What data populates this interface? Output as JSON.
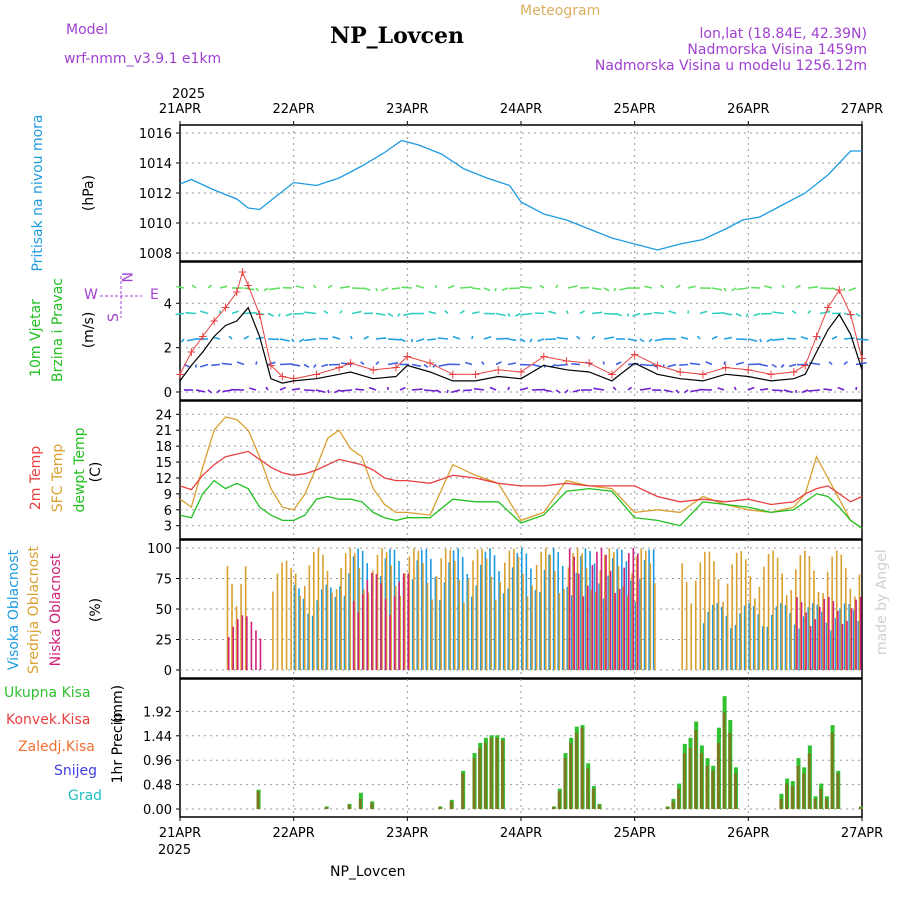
{
  "header": {
    "model_label": "Model",
    "model_name": "wrf-nmm_v3.9.1 e1km",
    "title": "NP_Lovcen",
    "subtitle": "Meteogram",
    "lonlat": "lon,lat (18.84E, 42.39N)",
    "elevation": "Nadmorska Visina 1459m",
    "model_elevation": "Nadmorska Visina u modelu 1256.12m",
    "footer": "NP_Lovcen",
    "watermark": "made by Angel"
  },
  "colors": {
    "pressure": "#1e9be0",
    "temp2m": "#e84040",
    "sfc_temp": "#d9a030",
    "dewpt": "#20c020",
    "cloud_high": "#1e9be0",
    "cloud_mid": "#d9a030",
    "cloud_low": "#d0207a",
    "precip_total": "#30c030",
    "precip_conv": "#e84040",
    "precip_frz": "#f07030",
    "snow": "#4040e0",
    "grad": "#20c0c0",
    "wind_speed": "#000000",
    "wind_gust": "#e84040",
    "meta": "#a040d0",
    "subtitle": "#d9b060"
  },
  "chart_data": [
    {
      "type": "line",
      "panel": "pressure",
      "ylabel_left": "Pritisak na nivou mora",
      "ylabel_unit": "(hPa)",
      "ylim": [
        1008,
        1016
      ],
      "yticks": [
        1008,
        1010,
        1012,
        1014,
        1016
      ],
      "x_top_year": "2025",
      "x_ticks": [
        "21APR",
        "22APR",
        "23APR",
        "24APR",
        "25APR",
        "26APR",
        "27APR"
      ],
      "series": [
        {
          "name": "",
          "x": [
            0,
            0.1,
            0.3,
            0.5,
            0.6,
            0.7,
            0.8,
            1.0,
            1.2,
            1.4,
            1.6,
            1.8,
            1.95,
            2.1,
            2.3,
            2.5,
            2.7,
            2.9,
            3.0,
            3.2,
            3.4,
            3.6,
            3.8,
            4.0,
            4.2,
            4.4,
            4.6,
            4.8,
            4.95,
            5.1,
            5.3,
            5.5,
            5.7,
            5.9,
            6.0
          ],
          "values": [
            1012.6,
            1012.9,
            1012.2,
            1011.6,
            1011.0,
            1010.9,
            1011.5,
            1012.7,
            1012.5,
            1013.0,
            1013.8,
            1014.7,
            1015.5,
            1015.2,
            1014.6,
            1013.6,
            1013.0,
            1012.5,
            1011.4,
            1010.6,
            1010.2,
            1009.6,
            1009.0,
            1008.6,
            1008.2,
            1008.6,
            1008.9,
            1009.6,
            1010.2,
            1010.4,
            1011.2,
            1012.0,
            1013.2,
            1014.8,
            1014.8
          ]
        }
      ]
    },
    {
      "type": "line",
      "panel": "wind",
      "ylabel_left": "10m Vjetar",
      "ylabel_left2": "Brzina i Pravac",
      "ylabel_unit": "(m/s)",
      "compass": [
        "N",
        "W",
        "E",
        "S"
      ],
      "ylim": [
        0,
        5.5
      ],
      "yticks": [
        0,
        2,
        4
      ],
      "series": [
        {
          "name": "",
          "x": [
            0,
            0.1,
            0.2,
            0.3,
            0.4,
            0.5,
            0.6,
            0.7,
            0.8,
            0.9,
            1.0,
            1.2,
            1.4,
            1.5,
            1.7,
            1.9,
            2.0,
            2.2,
            2.4,
            2.6,
            2.8,
            3.0,
            3.2,
            3.4,
            3.6,
            3.8,
            4.0,
            4.2,
            4.4,
            4.6,
            4.8,
            5.0,
            5.2,
            5.4,
            5.5,
            5.6,
            5.7,
            5.8,
            5.9,
            6.0
          ],
          "values": [
            0.5,
            1.2,
            1.8,
            2.5,
            3.0,
            3.2,
            3.8,
            2.5,
            0.6,
            0.4,
            0.5,
            0.6,
            0.8,
            0.9,
            0.6,
            0.7,
            1.2,
            0.9,
            0.5,
            0.5,
            0.7,
            0.6,
            1.2,
            1.0,
            0.9,
            0.5,
            1.3,
            0.8,
            0.6,
            0.5,
            0.8,
            0.7,
            0.5,
            0.6,
            0.8,
            1.8,
            2.8,
            3.5,
            2.6,
            1.0
          ]
        },
        {
          "name": "",
          "x": [
            0,
            0.1,
            0.2,
            0.3,
            0.4,
            0.5,
            0.55,
            0.6,
            0.7,
            0.8,
            0.9,
            1.0,
            1.2,
            1.4,
            1.5,
            1.7,
            1.9,
            2.0,
            2.2,
            2.4,
            2.6,
            2.8,
            3.0,
            3.2,
            3.4,
            3.6,
            3.8,
            4.0,
            4.2,
            4.4,
            4.6,
            4.8,
            5.0,
            5.2,
            5.4,
            5.5,
            5.6,
            5.7,
            5.8,
            5.9,
            6.0
          ],
          "values": [
            0.8,
            1.8,
            2.5,
            3.2,
            3.8,
            4.5,
            5.4,
            4.8,
            3.5,
            1.2,
            0.7,
            0.6,
            0.8,
            1.1,
            1.3,
            1.0,
            1.1,
            1.6,
            1.3,
            0.8,
            0.8,
            1.0,
            0.9,
            1.6,
            1.4,
            1.3,
            0.8,
            1.7,
            1.2,
            0.9,
            0.8,
            1.1,
            1.0,
            0.8,
            0.9,
            1.2,
            2.5,
            3.8,
            4.6,
            3.5,
            1.5
          ]
        }
      ]
    },
    {
      "type": "line",
      "panel": "temperature",
      "ylabel_left": "2m Temp",
      "ylabel_left2": "SFC Temp",
      "ylabel_left3": "dewpt Temp",
      "ylabel_unit": "(C)",
      "ylim": [
        2,
        25
      ],
      "yticks": [
        3,
        6,
        9,
        12,
        15,
        18,
        21,
        24
      ],
      "series": [
        {
          "name": "2m Temp",
          "x": [
            0,
            0.1,
            0.2,
            0.3,
            0.4,
            0.5,
            0.6,
            0.7,
            0.8,
            0.9,
            1.0,
            1.1,
            1.2,
            1.3,
            1.4,
            1.5,
            1.6,
            1.7,
            1.8,
            1.9,
            2.0,
            2.2,
            2.4,
            2.6,
            2.8,
            3.0,
            3.2,
            3.4,
            3.6,
            3.8,
            4.0,
            4.2,
            4.4,
            4.6,
            4.8,
            5.0,
            5.2,
            5.4,
            5.5,
            5.6,
            5.7,
            5.8,
            5.9,
            6.0
          ],
          "values": [
            10.5,
            9.8,
            12.5,
            14.5,
            16.0,
            16.5,
            17.0,
            15.5,
            14.0,
            13.0,
            12.5,
            12.8,
            13.5,
            14.5,
            15.5,
            15.0,
            14.5,
            13.5,
            12.0,
            11.5,
            11.5,
            11.0,
            12.5,
            12.0,
            11.0,
            10.5,
            10.5,
            11.0,
            10.5,
            10.5,
            10.5,
            8.5,
            7.5,
            8.0,
            7.5,
            8.0,
            7.0,
            7.5,
            9.0,
            10.0,
            10.5,
            9.0,
            7.5,
            8.5
          ]
        },
        {
          "name": "SFC Temp",
          "x": [
            0,
            0.1,
            0.2,
            0.3,
            0.4,
            0.5,
            0.6,
            0.7,
            0.8,
            0.9,
            1.0,
            1.1,
            1.2,
            1.3,
            1.4,
            1.5,
            1.6,
            1.7,
            1.8,
            1.9,
            2.0,
            2.2,
            2.4,
            2.6,
            2.8,
            3.0,
            3.2,
            3.4,
            3.6,
            3.8,
            4.0,
            4.2,
            4.4,
            4.6,
            4.8,
            5.0,
            5.2,
            5.4,
            5.5,
            5.6,
            5.7,
            5.8,
            5.9,
            6.0
          ],
          "values": [
            8.0,
            6.5,
            14.0,
            21.0,
            23.5,
            23.0,
            21.0,
            16.0,
            10.0,
            6.5,
            6.0,
            9.0,
            14.0,
            19.5,
            21.0,
            17.5,
            16.0,
            10.0,
            7.0,
            5.5,
            5.5,
            5.0,
            14.5,
            12.5,
            11.0,
            4.0,
            5.5,
            11.5,
            10.5,
            10.0,
            5.5,
            6.0,
            5.5,
            8.5,
            7.0,
            6.0,
            5.5,
            6.5,
            9.0,
            16.0,
            12.0,
            8.0,
            4.0,
            2.5
          ]
        },
        {
          "name": "dewpt Temp",
          "x": [
            0,
            0.1,
            0.2,
            0.3,
            0.4,
            0.5,
            0.6,
            0.7,
            0.8,
            0.9,
            1.0,
            1.1,
            1.2,
            1.3,
            1.4,
            1.5,
            1.6,
            1.7,
            1.8,
            1.9,
            2.0,
            2.2,
            2.4,
            2.6,
            2.8,
            3.0,
            3.2,
            3.4,
            3.6,
            3.8,
            4.0,
            4.2,
            4.4,
            4.6,
            4.8,
            5.0,
            5.2,
            5.4,
            5.5,
            5.6,
            5.7,
            5.8,
            5.9,
            6.0
          ],
          "values": [
            5.0,
            4.5,
            9.0,
            11.5,
            10.0,
            11.0,
            10.0,
            6.5,
            5.0,
            4.0,
            4.0,
            5.0,
            8.0,
            8.5,
            8.0,
            8.0,
            7.5,
            5.5,
            4.5,
            4.0,
            4.5,
            4.5,
            8.0,
            7.5,
            7.5,
            3.5,
            5.0,
            9.5,
            10.0,
            9.5,
            4.5,
            4.0,
            3.0,
            7.5,
            7.0,
            6.5,
            5.5,
            6.0,
            7.5,
            9.0,
            8.5,
            6.5,
            4.0,
            2.5
          ]
        }
      ]
    },
    {
      "type": "bar",
      "panel": "clouds",
      "ylabel_left": "Visoka Oblacnost",
      "ylabel_left2": "Srednja Oblacnost",
      "ylabel_left3": "Niska Oblacnost",
      "ylabel_unit": "(%)",
      "ylim": [
        0,
        100
      ],
      "yticks": [
        0,
        25,
        50,
        75,
        100
      ],
      "series": [
        {
          "name": "Visoka Oblacnost",
          "ranges": [
            [
              1.0,
              1.4,
              70
            ],
            [
              1.4,
              4.2,
              100
            ],
            [
              4.6,
              6.0,
              55
            ]
          ]
        },
        {
          "name": "Srednja Oblacnost",
          "ranges": [
            [
              0.4,
              0.6,
              95
            ],
            [
              0.8,
              1.0,
              90
            ],
            [
              1.0,
              4.2,
              100
            ],
            [
              4.4,
              6.0,
              98
            ]
          ]
        },
        {
          "name": "Niska Oblacnost",
          "ranges": [
            [
              0.4,
              0.7,
              45
            ],
            [
              1.5,
              2.0,
              80
            ],
            [
              3.4,
              4.0,
              100
            ],
            [
              5.4,
              6.0,
              60
            ]
          ]
        }
      ]
    },
    {
      "type": "bar",
      "panel": "precip",
      "ylabel_left": "1hr Precip",
      "ylabel_unit": "(mm)",
      "legend": [
        "Ukupna Kisa",
        "Konvek.Kisa",
        "Zaledj.Kisa",
        "Snijeg",
        "Grad"
      ],
      "ylim": [
        0,
        2.4
      ],
      "yticks": [
        0,
        0.48,
        0.96,
        1.44,
        1.92
      ],
      "x_bottom_year": "2025",
      "x_ticks": [
        "21APR",
        "22APR",
        "23APR",
        "24APR",
        "25APR",
        "26APR",
        "27APR"
      ],
      "series": [
        {
          "name": "Ukupna Kisa",
          "x": [
            0.7,
            1.3,
            1.5,
            1.6,
            1.7,
            2.3,
            2.4,
            2.5,
            2.6,
            2.65,
            2.7,
            2.75,
            2.8,
            2.85,
            3.3,
            3.35,
            3.4,
            3.45,
            3.5,
            3.55,
            3.6,
            3.65,
            3.7,
            4.3,
            4.35,
            4.4,
            4.45,
            4.5,
            4.55,
            4.6,
            4.65,
            4.7,
            4.75,
            4.8,
            4.85,
            4.9,
            5.3,
            5.35,
            5.4,
            5.45,
            5.5,
            5.55,
            5.6,
            5.65,
            5.7,
            5.75,
            5.8,
            6.0
          ],
          "values": [
            0.38,
            0.05,
            0.1,
            0.32,
            0.15,
            0.05,
            0.18,
            0.75,
            1.1,
            1.3,
            1.4,
            1.45,
            1.45,
            1.4,
            0.05,
            0.4,
            1.1,
            1.4,
            1.62,
            1.65,
            0.9,
            0.45,
            0.1,
            0.05,
            0.2,
            0.5,
            1.28,
            1.4,
            1.72,
            1.25,
            1.0,
            0.85,
            1.6,
            2.22,
            1.75,
            0.82,
            0.3,
            0.6,
            0.55,
            1.0,
            0.82,
            1.25,
            0.25,
            0.5,
            0.25,
            1.65,
            0.75,
            0.05
          ]
        },
        {
          "name": "Konvek.Kisa",
          "x": [
            0.7,
            1.3,
            1.5,
            1.6,
            1.7,
            2.3,
            2.4,
            2.5,
            2.6,
            2.65,
            2.7,
            2.75,
            2.8,
            2.85,
            3.3,
            3.35,
            3.4,
            3.45,
            3.5,
            3.55,
            3.6,
            3.65,
            3.7,
            4.3,
            4.35,
            4.4,
            4.45,
            4.5,
            4.55,
            4.6,
            4.65,
            4.7,
            4.75,
            4.8,
            4.85,
            4.9,
            5.3,
            5.35,
            5.4,
            5.45,
            5.5,
            5.55,
            5.6,
            5.65,
            5.7,
            5.75,
            5.8,
            6.0
          ],
          "values": [
            0.35,
            0.04,
            0.08,
            0.2,
            0.12,
            0.04,
            0.15,
            0.7,
            1.0,
            1.2,
            1.3,
            1.4,
            1.4,
            1.35,
            0.04,
            0.35,
            1.0,
            1.3,
            1.5,
            1.6,
            0.8,
            0.4,
            0.08,
            0.04,
            0.15,
            0.4,
            1.1,
            1.2,
            1.55,
            1.1,
            0.85,
            0.75,
            1.3,
            1.9,
            1.5,
            0.7,
            0.2,
            0.5,
            0.45,
            0.85,
            0.7,
            1.1,
            0.2,
            0.4,
            0.2,
            1.5,
            0.7,
            0.04
          ]
        }
      ]
    }
  ]
}
